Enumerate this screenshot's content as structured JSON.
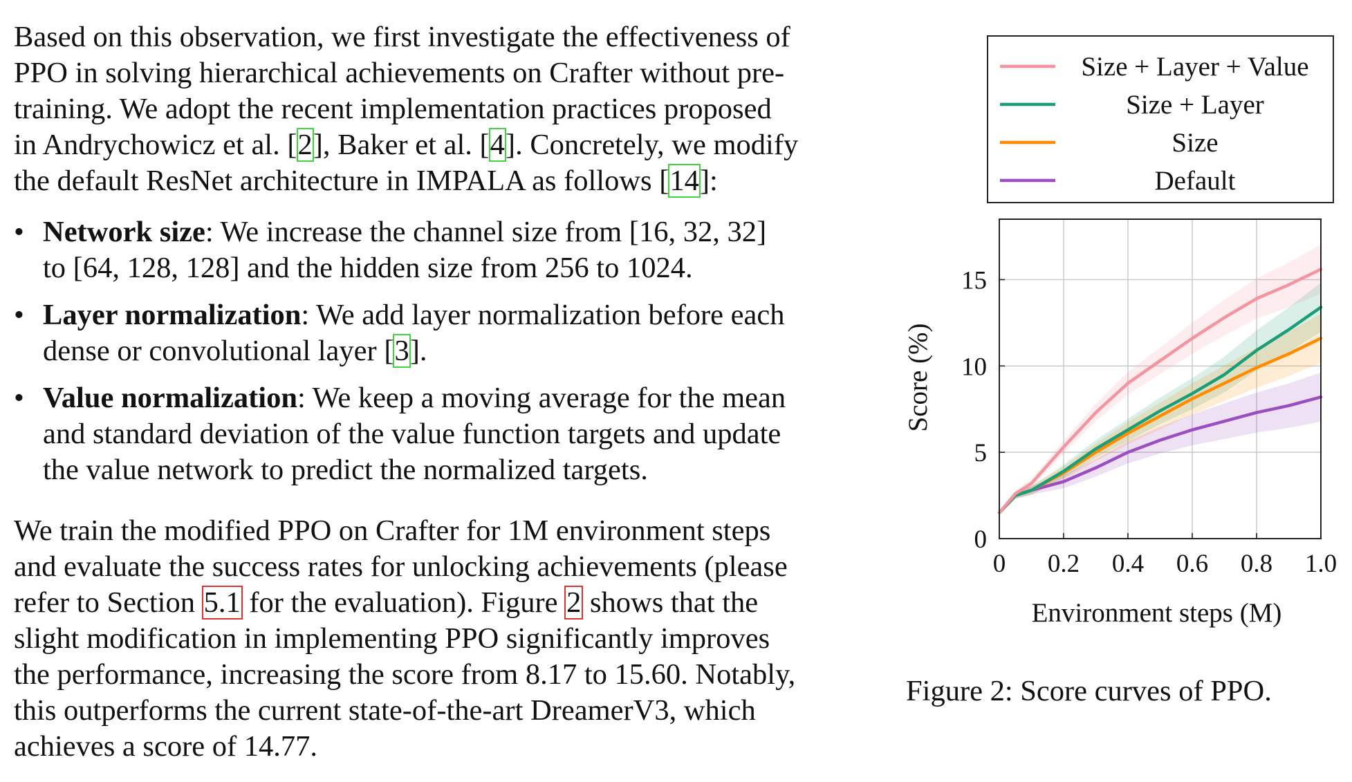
{
  "intro_paragraph": {
    "lines": [
      "Based on this observation, we first investigate the effectiveness of",
      "PPO in solving hierarchical achievements on Crafter without pre-",
      "training. We adopt the recent implementation practices proposed"
    ],
    "line4_before": "in Andrychowicz et al. [",
    "line4_ref1": "2",
    "line4_mid": "], Baker et al. [",
    "line4_ref2": "4",
    "line4_after": "]. Concretely, we modify",
    "line5_before": "the default ResNet architecture in IMPALA as follows [",
    "line5_ref": "14",
    "line5_after": "]:"
  },
  "bullets": [
    {
      "bullet": "•",
      "term": "Network size",
      "line1": ": We increase the channel size from [16, 32, 32]",
      "line2": "to [64, 128, 128] and the hidden size from 256 to 1024."
    },
    {
      "bullet": "•",
      "term": "Layer normalization",
      "line1": ": We add layer normalization before each",
      "line2_before": "dense or convolutional layer [",
      "ref": "3",
      "line2_after": "]."
    },
    {
      "bullet": "•",
      "term": "Value normalization",
      "line1": ": We keep a moving average for the mean",
      "line2": "and standard deviation of the value function targets and update",
      "line3": "the value network to predict the normalized targets."
    }
  ],
  "result_paragraph": {
    "line1": "We train the modified PPO on Crafter for 1M environment steps",
    "line2": "and evaluate the success rates for unlocking achievements (please",
    "line3_before": "refer to Section ",
    "line3_ref1": "5.1",
    "line3_mid": " for the evaluation). Figure ",
    "line3_ref2": "2",
    "line3_after": " shows that the",
    "line4": "slight modification in implementing PPO significantly improves",
    "line5": "the performance, increasing the score from 8.17 to 15.60. Notably,",
    "line6": "this outperforms the current state-of-the-art DreamerV3, which",
    "line7": "achieves a score of 14.77."
  },
  "figure": {
    "caption": "Figure 2: Score curves of PPO."
  },
  "chart_data": {
    "type": "line",
    "title": "",
    "xlabel": "Environment steps (M)",
    "ylabel": "Score (%)",
    "xlim": [
      0,
      1.0
    ],
    "ylim": [
      0,
      18.5
    ],
    "xticks": [
      0,
      0.2,
      0.4,
      0.6,
      0.8,
      1.0
    ],
    "xtick_labels": [
      "0",
      "0.2",
      "0.4",
      "0.6",
      "0.8",
      "1.0"
    ],
    "yticks": [
      0,
      5,
      10,
      15
    ],
    "ytick_labels": [
      "0",
      "5",
      "10",
      "15"
    ],
    "grid": true,
    "legend_position": "above",
    "shaded_confidence_bands": true,
    "series": [
      {
        "name": "Size + Layer + Value",
        "color": "#f4949e",
        "x": [
          0.0,
          0.05,
          0.1,
          0.2,
          0.3,
          0.4,
          0.5,
          0.6,
          0.7,
          0.8,
          0.9,
          1.0
        ],
        "values": [
          1.5,
          2.6,
          3.2,
          5.3,
          7.3,
          9.0,
          10.3,
          11.6,
          12.8,
          13.9,
          14.7,
          15.6
        ]
      },
      {
        "name": "Size + Layer",
        "color": "#1b9e77",
        "x": [
          0.0,
          0.05,
          0.1,
          0.2,
          0.3,
          0.4,
          0.5,
          0.6,
          0.7,
          0.8,
          0.9,
          1.0
        ],
        "values": [
          1.5,
          2.5,
          2.8,
          3.9,
          5.2,
          6.3,
          7.4,
          8.4,
          9.5,
          10.9,
          12.1,
          13.4
        ]
      },
      {
        "name": "Size",
        "color": "#ff8c00",
        "x": [
          0.0,
          0.05,
          0.1,
          0.2,
          0.3,
          0.4,
          0.5,
          0.6,
          0.7,
          0.8,
          0.9,
          1.0
        ],
        "values": [
          1.5,
          2.5,
          2.8,
          3.8,
          5.0,
          6.1,
          7.1,
          8.1,
          9.0,
          9.9,
          10.7,
          11.6
        ]
      },
      {
        "name": "Default",
        "color": "#9b4fbf",
        "x": [
          0.0,
          0.05,
          0.1,
          0.2,
          0.3,
          0.4,
          0.5,
          0.6,
          0.7,
          0.8,
          0.9,
          1.0
        ],
        "values": [
          1.5,
          2.5,
          2.8,
          3.3,
          4.1,
          5.0,
          5.7,
          6.3,
          6.8,
          7.3,
          7.7,
          8.2
        ]
      }
    ]
  }
}
